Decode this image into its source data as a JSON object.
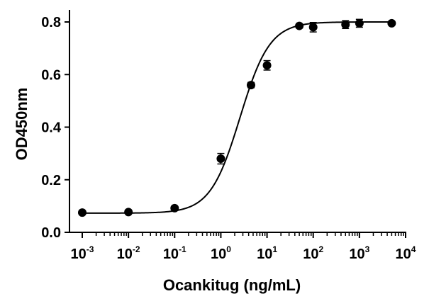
{
  "chart_data": {
    "type": "scatter",
    "xlabel": "Ocankitug (ng/mL)",
    "ylabel": "OD450nm",
    "x_scale": "log",
    "xlim": [
      0.001,
      10000
    ],
    "ylim": [
      0,
      0.85
    ],
    "x_ticks": [
      {
        "base": "10",
        "exp": "-3",
        "value": 0.001
      },
      {
        "base": "10",
        "exp": "-2",
        "value": 0.01
      },
      {
        "base": "10",
        "exp": "-1",
        "value": 0.1
      },
      {
        "base": "10",
        "exp": "0",
        "value": 1
      },
      {
        "base": "10",
        "exp": "1",
        "value": 10
      },
      {
        "base": "10",
        "exp": "2",
        "value": 100
      },
      {
        "base": "10",
        "exp": "3",
        "value": 1000
      },
      {
        "base": "10",
        "exp": "4",
        "value": 10000
      }
    ],
    "y_ticks": [
      {
        "label": "0.0",
        "value": 0
      },
      {
        "label": "0.2",
        "value": 0.2
      },
      {
        "label": "0.4",
        "value": 0.4
      },
      {
        "label": "0.6",
        "value": 0.6
      },
      {
        "label": "0.8",
        "value": 0.8
      }
    ],
    "grid": false,
    "series": [
      {
        "points": [
          {
            "x": 0.001,
            "y": 0.075,
            "err": 0.004
          },
          {
            "x": 0.01,
            "y": 0.077,
            "err": 0.004
          },
          {
            "x": 0.1,
            "y": 0.092,
            "err": 0.005
          },
          {
            "x": 1,
            "y": 0.28,
            "err": 0.02
          },
          {
            "x": 4.5,
            "y": 0.56,
            "err": 0.01
          },
          {
            "x": 10,
            "y": 0.635,
            "err": 0.018
          },
          {
            "x": 50,
            "y": 0.785,
            "err": 0.008
          },
          {
            "x": 100,
            "y": 0.78,
            "err": 0.018
          },
          {
            "x": 500,
            "y": 0.79,
            "err": 0.015
          },
          {
            "x": 1000,
            "y": 0.795,
            "err": 0.015
          },
          {
            "x": 5000,
            "y": 0.795,
            "err": 0.006
          }
        ],
        "fit": {
          "model": "4PL",
          "bottom": 0.073,
          "top": 0.8,
          "ec50": 2.6,
          "hill": 1.35
        }
      }
    ],
    "colors": {
      "marker": "#000000",
      "line": "#000000",
      "axis": "#000000"
    }
  }
}
